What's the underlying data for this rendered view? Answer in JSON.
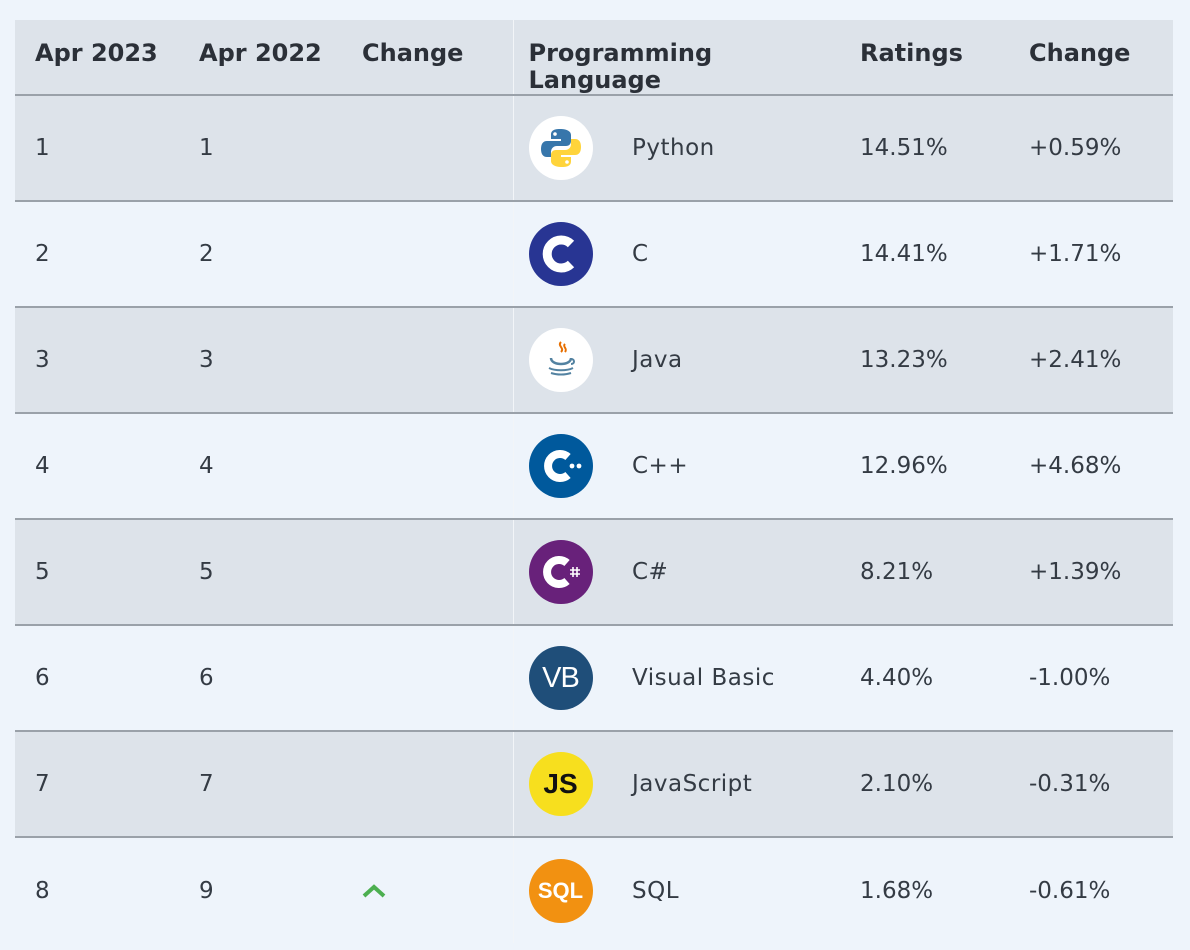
{
  "headers": {
    "col1": "Apr 2023",
    "col2": "Apr 2022",
    "col3": "Change",
    "col4": "Programming Language",
    "col6": "Ratings",
    "col7": "Change"
  },
  "rows": [
    {
      "rank2023": "1",
      "rank2022": "1",
      "name": "Python",
      "ratings": "14.51%",
      "change": "+0.59%",
      "icon": "python-icon"
    },
    {
      "rank2023": "2",
      "rank2022": "2",
      "name": "C",
      "ratings": "14.41%",
      "change": "+1.71%",
      "icon": "c-icon"
    },
    {
      "rank2023": "3",
      "rank2022": "3",
      "name": "Java",
      "ratings": "13.23%",
      "change": "+2.41%",
      "icon": "java-icon"
    },
    {
      "rank2023": "4",
      "rank2022": "4",
      "name": "C++",
      "ratings": "12.96%",
      "change": "+4.68%",
      "icon": "cpp-icon"
    },
    {
      "rank2023": "5",
      "rank2022": "5",
      "name": "C#",
      "ratings": "8.21%",
      "change": "+1.39%",
      "icon": "csharp-icon"
    },
    {
      "rank2023": "6",
      "rank2022": "6",
      "name": "Visual Basic",
      "ratings": "4.40%",
      "change": "-1.00%",
      "icon": "visual-basic-icon",
      "logo_text": "VB"
    },
    {
      "rank2023": "7",
      "rank2022": "7",
      "name": "JavaScript",
      "ratings": "2.10%",
      "change": "-0.31%",
      "icon": "javascript-icon",
      "logo_text": "JS"
    },
    {
      "rank2023": "8",
      "rank2022": "9",
      "name": "SQL",
      "ratings": "1.68%",
      "change": "-0.61%",
      "icon": "sql-icon",
      "logo_text": "SQL",
      "trend_icon": "chevron-up-icon"
    }
  ],
  "colors": {
    "header_bg": "#dde3ea",
    "alt_row_bg": "#dde3ea",
    "row_bg": "#eef4fb",
    "divider": "#9aa1a9",
    "trend_up": "#4caf50"
  }
}
